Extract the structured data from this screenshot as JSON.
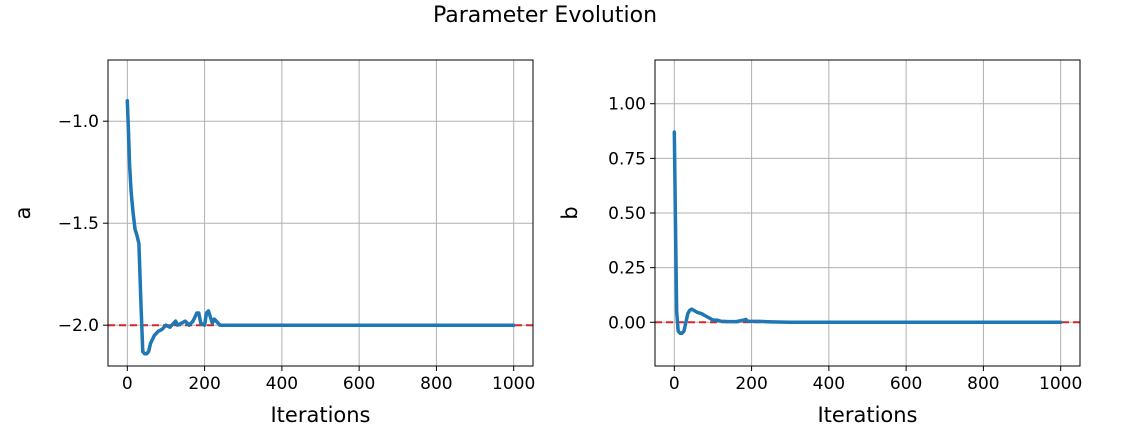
{
  "figure": {
    "title": "Parameter Evolution"
  },
  "colors": {
    "series": "#1f77b4",
    "reference": "#d62728",
    "grid": "#b0b0b0",
    "axes": "#000000",
    "background": "#ffffff"
  },
  "chart_data": [
    {
      "type": "line",
      "title": "",
      "xlabel": "Iterations",
      "ylabel": "a",
      "xlim": [
        -50,
        1050
      ],
      "ylim": [
        -2.2,
        -0.7
      ],
      "xticks": [
        0,
        200,
        400,
        600,
        800,
        1000
      ],
      "xtick_labels": [
        "0",
        "200",
        "400",
        "600",
        "800",
        "1000"
      ],
      "yticks": [
        -2.0,
        -1.5,
        -1.0
      ],
      "ytick_labels": [
        "−2.0",
        "−1.5",
        "−1.0"
      ],
      "grid": true,
      "reference_line": {
        "y": -2.0,
        "style": "dashed"
      },
      "series": [
        {
          "x": [
            0,
            3,
            6,
            10,
            15,
            20,
            25,
            30,
            35,
            40,
            45,
            50,
            55,
            60,
            70,
            80,
            90,
            100,
            110,
            120,
            125,
            130,
            140,
            150,
            160,
            170,
            180,
            185,
            190,
            200,
            205,
            210,
            220,
            225,
            230,
            240,
            260,
            300,
            400,
            500,
            600,
            700,
            800,
            900,
            1000
          ],
          "values": [
            -0.9,
            -1.05,
            -1.22,
            -1.35,
            -1.45,
            -1.53,
            -1.56,
            -1.6,
            -1.88,
            -2.13,
            -2.14,
            -2.14,
            -2.13,
            -2.09,
            -2.05,
            -2.03,
            -2.02,
            -2.0,
            -2.01,
            -1.99,
            -1.98,
            -2.0,
            -1.99,
            -1.98,
            -2.0,
            -1.98,
            -1.94,
            -1.94,
            -1.99,
            -2.0,
            -1.94,
            -1.93,
            -1.99,
            -1.97,
            -1.98,
            -2.0,
            -2.0,
            -2.0,
            -2.0,
            -2.0,
            -2.0,
            -2.0,
            -2.0,
            -2.0,
            -2.0
          ]
        }
      ]
    },
    {
      "type": "line",
      "title": "",
      "xlabel": "Iterations",
      "ylabel": "b",
      "xlim": [
        -50,
        1050
      ],
      "ylim": [
        -0.2,
        1.2
      ],
      "xticks": [
        0,
        200,
        400,
        600,
        800,
        1000
      ],
      "xtick_labels": [
        "0",
        "200",
        "400",
        "600",
        "800",
        "1000"
      ],
      "yticks": [
        0.0,
        0.25,
        0.5,
        0.75,
        1.0
      ],
      "ytick_labels": [
        "0.00",
        "0.25",
        "0.50",
        "0.75",
        "1.00"
      ],
      "grid": true,
      "reference_line": {
        "y": 0.0,
        "style": "dashed"
      },
      "series": [
        {
          "x": [
            0,
            3,
            6,
            10,
            15,
            20,
            25,
            30,
            35,
            40,
            45,
            50,
            55,
            60,
            70,
            80,
            90,
            100,
            110,
            120,
            140,
            160,
            180,
            185,
            190,
            200,
            220,
            250,
            300,
            400,
            500,
            600,
            700,
            800,
            900,
            1000
          ],
          "values": [
            0.87,
            0.45,
            0.05,
            -0.04,
            -0.05,
            -0.05,
            -0.04,
            0.0,
            0.04,
            0.055,
            0.06,
            0.055,
            0.05,
            0.045,
            0.04,
            0.03,
            0.02,
            0.01,
            0.01,
            0.005,
            0.003,
            0.003,
            0.01,
            0.013,
            0.005,
            0.004,
            0.004,
            0.002,
            0.0,
            0.0,
            0.0,
            0.0,
            0.0,
            0.0,
            0.0,
            0.0
          ]
        }
      ]
    }
  ]
}
